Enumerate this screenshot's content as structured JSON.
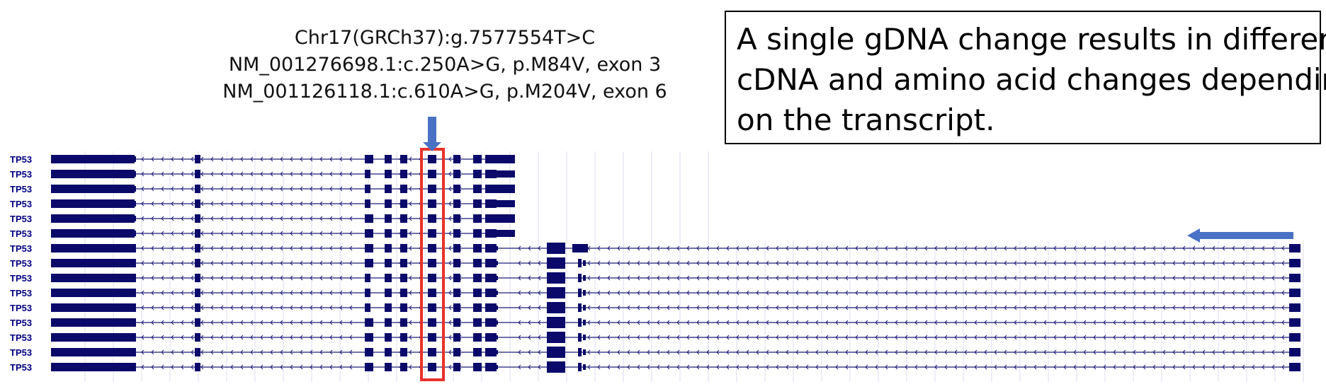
{
  "callout": {
    "lines": [
      "Chr17(GRCh37):g.7577554T>C",
      "NM_001276698.1:c.250A>G, p.M84V, exon 3",
      "NM_001126118.1:c.610A>G, p.M204V, exon 6"
    ]
  },
  "note": {
    "lines": [
      "A single gDNA change results in different",
      "cDNA and amino acid changes depending",
      "on the transcript."
    ]
  },
  "gene_label": "TP53",
  "track": {
    "rows": 15,
    "label_color": "#000080",
    "exon_color": "#0b0a6a",
    "highlight_color": "#e8322a",
    "arrow_color": "#4a72c4",
    "strand": "minus",
    "short_transcript_rows": 6
  }
}
